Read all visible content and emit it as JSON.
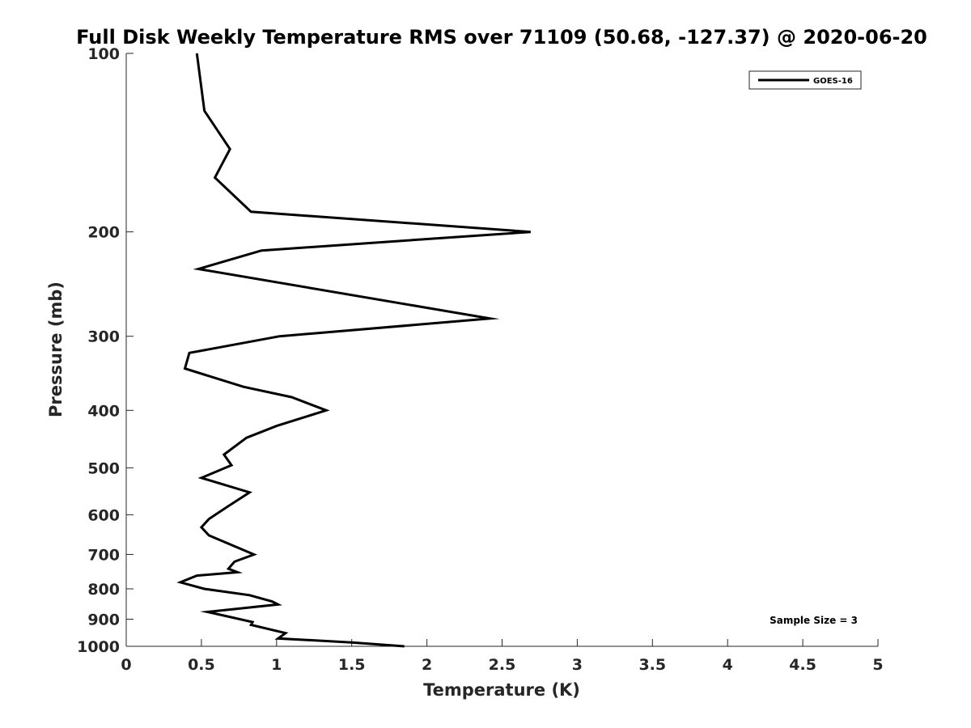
{
  "chart_data": {
    "type": "line",
    "title": "Full Disk Weekly Temperature RMS over 71109 (50.68, -127.37) @ 2020-06-20",
    "xlabel": "Temperature (K)",
    "ylabel": "Pressure (mb)",
    "xlim": [
      0,
      5
    ],
    "ylim": [
      100,
      1000
    ],
    "y_scale": "log",
    "y_reversed": true,
    "x_ticks": [
      "0",
      "0.5",
      "1",
      "1.5",
      "2",
      "2.5",
      "3",
      "3.5",
      "4",
      "4.5",
      "5"
    ],
    "y_ticks": [
      "100",
      "200",
      "300",
      "400",
      "500",
      "600",
      "700",
      "800",
      "900",
      "1000"
    ],
    "grid": false,
    "legend_position": "top-right",
    "annotation": "Sample Size = 3",
    "series": [
      {
        "name": "GOES-16",
        "color": "#000000",
        "points": [
          [
            0.47,
            100
          ],
          [
            0.52,
            125
          ],
          [
            0.69,
            145
          ],
          [
            0.59,
            162
          ],
          [
            0.83,
            185
          ],
          [
            2.69,
            200
          ],
          [
            0.9,
            215
          ],
          [
            0.48,
            231
          ],
          [
            2.42,
            280
          ],
          [
            1.02,
            300
          ],
          [
            0.42,
            320
          ],
          [
            0.39,
            340
          ],
          [
            0.78,
            365
          ],
          [
            1.1,
            380
          ],
          [
            1.33,
            400
          ],
          [
            1.0,
            425
          ],
          [
            0.8,
            445
          ],
          [
            0.65,
            475
          ],
          [
            0.7,
            495
          ],
          [
            0.5,
            520
          ],
          [
            0.82,
            550
          ],
          [
            0.68,
            580
          ],
          [
            0.55,
            610
          ],
          [
            0.5,
            630
          ],
          [
            0.55,
            650
          ],
          [
            0.85,
            700
          ],
          [
            0.72,
            720
          ],
          [
            0.68,
            740
          ],
          [
            0.74,
            750
          ],
          [
            0.47,
            760
          ],
          [
            0.36,
            780
          ],
          [
            0.52,
            800
          ],
          [
            0.82,
            820
          ],
          [
            0.97,
            840
          ],
          [
            1.01,
            850
          ],
          [
            0.54,
            875
          ],
          [
            0.67,
            890
          ],
          [
            0.84,
            910
          ],
          [
            0.83,
            920
          ],
          [
            1.06,
            950
          ],
          [
            1.01,
            970
          ],
          [
            1.5,
            985
          ],
          [
            1.85,
            1000
          ]
        ]
      }
    ]
  }
}
